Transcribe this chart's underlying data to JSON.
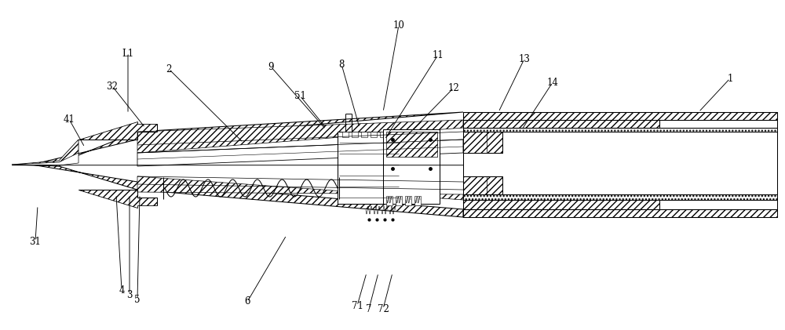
{
  "bg": "#ffffff",
  "fig_w": 10.0,
  "fig_h": 4.21,
  "labels": [
    [
      "1",
      930,
      100,
      890,
      143
    ],
    [
      "2",
      215,
      88,
      310,
      182
    ],
    [
      "L1",
      163,
      68,
      163,
      145
    ],
    [
      "32",
      143,
      110,
      185,
      163
    ],
    [
      "41",
      88,
      152,
      108,
      188
    ],
    [
      "31",
      45,
      308,
      48,
      262
    ],
    [
      "4",
      155,
      370,
      148,
      248
    ],
    [
      "3",
      165,
      376,
      165,
      248
    ],
    [
      "5",
      175,
      382,
      178,
      248
    ],
    [
      "6",
      315,
      385,
      365,
      300
    ],
    [
      "9",
      345,
      85,
      415,
      165
    ],
    [
      "51",
      382,
      122,
      415,
      163
    ],
    [
      "8",
      435,
      82,
      458,
      163
    ],
    [
      "10",
      508,
      32,
      488,
      143
    ],
    [
      "11",
      558,
      70,
      490,
      178
    ],
    [
      "12",
      578,
      112,
      492,
      200
    ],
    [
      "71",
      455,
      390,
      467,
      348
    ],
    [
      "7",
      470,
      394,
      482,
      348
    ],
    [
      "72",
      488,
      394,
      500,
      348
    ],
    [
      "13",
      668,
      75,
      635,
      143
    ],
    [
      "14",
      704,
      105,
      665,
      165
    ]
  ]
}
